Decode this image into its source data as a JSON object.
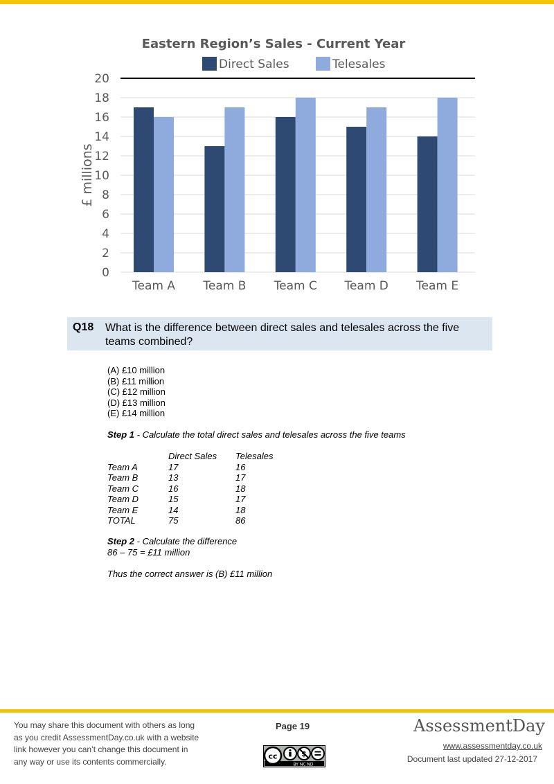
{
  "chart_data": {
    "type": "bar",
    "title": "Eastern Region’s Sales - Current Year",
    "ylabel": "£ millions",
    "xlabel": "",
    "categories": [
      "Team A",
      "Team B",
      "Team C",
      "Team D",
      "Team E"
    ],
    "series": [
      {
        "name": "Direct Sales",
        "values": [
          17,
          13,
          16,
          15,
          14
        ],
        "color": "#2e4a72"
      },
      {
        "name": "Telesales",
        "values": [
          16,
          17,
          18,
          17,
          18
        ],
        "color": "#8faadc"
      }
    ],
    "ylim": [
      0,
      20
    ],
    "yticks": [
      "0",
      "2",
      "4",
      "6",
      "8",
      "10",
      "12",
      "14",
      "16",
      "18",
      "20"
    ],
    "grid": true,
    "legend": "top"
  },
  "question": {
    "number": "Q18",
    "text": "What is the difference between direct sales and telesales across the five teams combined?"
  },
  "options": [
    "(A) £10 million",
    "(B) £11 million",
    "(C) £12 million",
    "(D) £13 million",
    "(E) £14 million"
  ],
  "step1": {
    "label": "Step 1",
    "text": " - Calculate the total direct sales and telesales across the five teams"
  },
  "table": {
    "headers": [
      "",
      "Direct Sales",
      "Telesales"
    ],
    "rows": [
      [
        "Team A",
        "17",
        "16"
      ],
      [
        "Team B",
        "13",
        "17"
      ],
      [
        "Team C",
        "16",
        "18"
      ],
      [
        "Team D",
        "15",
        "17"
      ],
      [
        "Team E",
        "14",
        "18"
      ],
      [
        "TOTAL",
        "75",
        "86"
      ]
    ]
  },
  "step2": {
    "label": "Step 2",
    "text": " - Calculate the difference",
    "calc": "86 – 75 = £11 million"
  },
  "conclusion": "Thus the correct answer is (B) £11 million",
  "footer": {
    "share_lines": [
      "You may share this document with others as long",
      "as you credit AssessmentDay.co.uk with a website",
      "link however you can’t change this document in",
      "any way or use its contents commercially."
    ],
    "page": "Page 19",
    "brand": "AssessmentDay",
    "website": "www.assessmentday.co.uk",
    "updated": "Document last updated 27-12-2017",
    "license_badge": "BY NC ND"
  },
  "colors": {
    "accent_bar": "#f5c400",
    "question_bg": "#dce6f1"
  }
}
